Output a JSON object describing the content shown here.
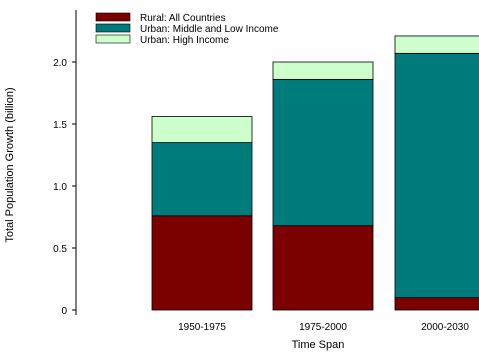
{
  "chart_data": {
    "type": "bar",
    "stacked": true,
    "title": "",
    "xlabel": "Time Span",
    "ylabel": "Total Population Growth (billion)",
    "categories": [
      "1950-1975",
      "1975-2000",
      "2000-2030"
    ],
    "ylim": [
      0,
      2.2
    ],
    "y_ticks": [
      0,
      0.5,
      1.0,
      1.5,
      2.0
    ],
    "y_tick_labels": [
      "0",
      "0.5",
      "1.0",
      "1.5",
      "2.0"
    ],
    "legend_position": "top-left",
    "series": [
      {
        "name": "Rural: All Countries",
        "color": "#7b0000",
        "values": [
          0.76,
          0.68,
          0.1
        ]
      },
      {
        "name": "Urban: Middle and Low Income",
        "color": "#007b7b",
        "values": [
          0.59,
          1.18,
          1.97
        ]
      },
      {
        "name": "Urban: High Income",
        "color": "#ccffcc",
        "values": [
          0.21,
          0.14,
          0.14
        ]
      }
    ]
  }
}
